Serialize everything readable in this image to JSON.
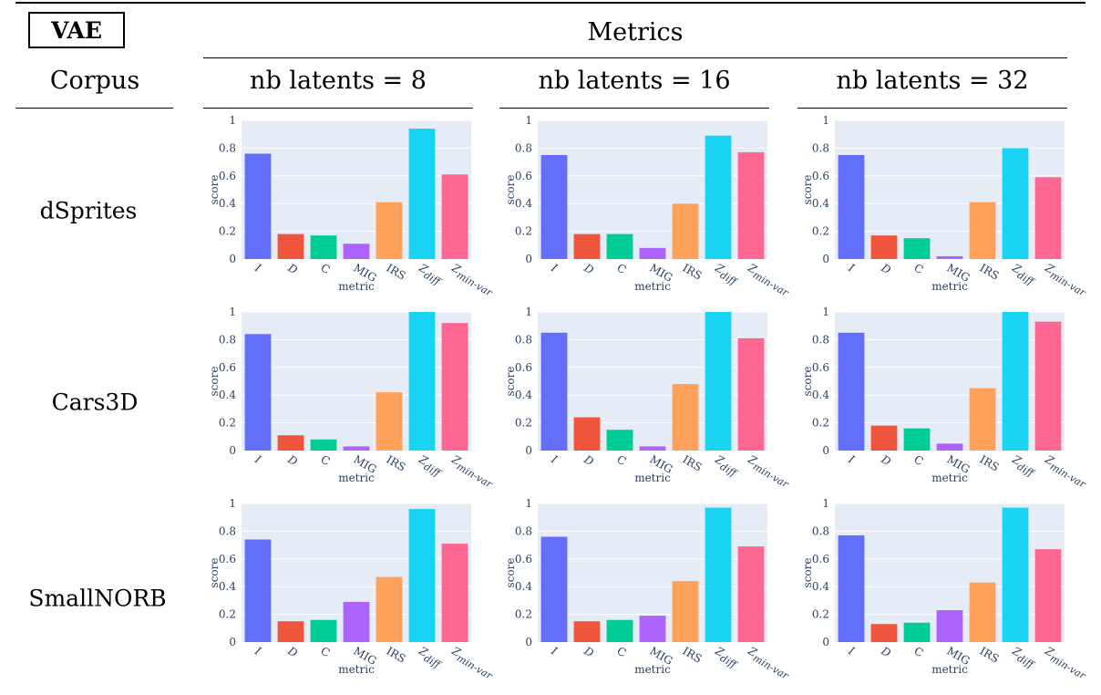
{
  "header": {
    "model_label": "VAE",
    "metrics_label": "Metrics",
    "corpus_label": "Corpus",
    "columns": [
      "nb latents = 8",
      "nb latents = 16",
      "nb latents = 32"
    ]
  },
  "rows": [
    "dSprites",
    "Cars3D",
    "SmallNORB"
  ],
  "chart_data": [
    {
      "type": "bar",
      "row": "dSprites",
      "column": "nb latents = 8",
      "categories": [
        "I",
        "D",
        "C",
        "MIG",
        "IRS",
        "Zdiff",
        "Zmin-var"
      ],
      "values": [
        0.76,
        0.18,
        0.17,
        0.11,
        0.41,
        0.94,
        0.61
      ],
      "xlabel": "metric",
      "ylabel": "score",
      "ylim": [
        0,
        1
      ],
      "yticks": [
        "0",
        "0.2",
        "0.4",
        "0.6",
        "0.8",
        "1"
      ],
      "colors": [
        "#636efa",
        "#ef553b",
        "#00cc96",
        "#ab63fa",
        "#ffa15a",
        "#19d3f3",
        "#ff6692"
      ]
    },
    {
      "type": "bar",
      "row": "dSprites",
      "column": "nb latents = 16",
      "categories": [
        "I",
        "D",
        "C",
        "MIG",
        "IRS",
        "Zdiff",
        "Zmin-var"
      ],
      "values": [
        0.75,
        0.18,
        0.18,
        0.08,
        0.4,
        0.89,
        0.77
      ],
      "xlabel": "metric",
      "ylabel": "score",
      "ylim": [
        0,
        1
      ],
      "yticks": [
        "0",
        "0.2",
        "0.4",
        "0.6",
        "0.8",
        "1"
      ],
      "colors": [
        "#636efa",
        "#ef553b",
        "#00cc96",
        "#ab63fa",
        "#ffa15a",
        "#19d3f3",
        "#ff6692"
      ]
    },
    {
      "type": "bar",
      "row": "dSprites",
      "column": "nb latents = 32",
      "categories": [
        "I",
        "D",
        "C",
        "MIG",
        "IRS",
        "Zdiff",
        "Zmin-var"
      ],
      "values": [
        0.75,
        0.17,
        0.15,
        0.02,
        0.41,
        0.8,
        0.59
      ],
      "xlabel": "metric",
      "ylabel": "score",
      "ylim": [
        0,
        1
      ],
      "yticks": [
        "0",
        "0.2",
        "0.4",
        "0.6",
        "0.8",
        "1"
      ],
      "colors": [
        "#636efa",
        "#ef553b",
        "#00cc96",
        "#ab63fa",
        "#ffa15a",
        "#19d3f3",
        "#ff6692"
      ]
    },
    {
      "type": "bar",
      "row": "Cars3D",
      "column": "nb latents = 8",
      "categories": [
        "I",
        "D",
        "C",
        "MIG",
        "IRS",
        "Zdiff",
        "Zmin-var"
      ],
      "values": [
        0.84,
        0.11,
        0.08,
        0.03,
        0.42,
        1.0,
        0.92
      ],
      "xlabel": "metric",
      "ylabel": "score",
      "ylim": [
        0,
        1
      ],
      "yticks": [
        "0",
        "0.2",
        "0.4",
        "0.6",
        "0.8",
        "1"
      ],
      "colors": [
        "#636efa",
        "#ef553b",
        "#00cc96",
        "#ab63fa",
        "#ffa15a",
        "#19d3f3",
        "#ff6692"
      ]
    },
    {
      "type": "bar",
      "row": "Cars3D",
      "column": "nb latents = 16",
      "categories": [
        "I",
        "D",
        "C",
        "MIG",
        "IRS",
        "Zdiff",
        "Zmin-var"
      ],
      "values": [
        0.85,
        0.24,
        0.15,
        0.03,
        0.48,
        1.0,
        0.81
      ],
      "xlabel": "metric",
      "ylabel": "score",
      "ylim": [
        0,
        1
      ],
      "yticks": [
        "0",
        "0.2",
        "0.4",
        "0.6",
        "0.8",
        "1"
      ],
      "colors": [
        "#636efa",
        "#ef553b",
        "#00cc96",
        "#ab63fa",
        "#ffa15a",
        "#19d3f3",
        "#ff6692"
      ]
    },
    {
      "type": "bar",
      "row": "Cars3D",
      "column": "nb latents = 32",
      "categories": [
        "I",
        "D",
        "C",
        "MIG",
        "IRS",
        "Zdiff",
        "Zmin-var"
      ],
      "values": [
        0.85,
        0.18,
        0.16,
        0.05,
        0.45,
        1.0,
        0.93
      ],
      "xlabel": "metric",
      "ylabel": "score",
      "ylim": [
        0,
        1
      ],
      "yticks": [
        "0",
        "0.2",
        "0.4",
        "0.6",
        "0.8",
        "1"
      ],
      "colors": [
        "#636efa",
        "#ef553b",
        "#00cc96",
        "#ab63fa",
        "#ffa15a",
        "#19d3f3",
        "#ff6692"
      ]
    },
    {
      "type": "bar",
      "row": "SmallNORB",
      "column": "nb latents = 8",
      "categories": [
        "I",
        "D",
        "C",
        "MIG",
        "IRS",
        "Zdiff",
        "Zmin-var"
      ],
      "values": [
        0.74,
        0.15,
        0.16,
        0.29,
        0.47,
        0.96,
        0.71
      ],
      "xlabel": "metric",
      "ylabel": "score",
      "ylim": [
        0,
        1
      ],
      "yticks": [
        "0",
        "0.2",
        "0.4",
        "0.6",
        "0.8",
        "1"
      ],
      "colors": [
        "#636efa",
        "#ef553b",
        "#00cc96",
        "#ab63fa",
        "#ffa15a",
        "#19d3f3",
        "#ff6692"
      ]
    },
    {
      "type": "bar",
      "row": "SmallNORB",
      "column": "nb latents = 16",
      "categories": [
        "I",
        "D",
        "C",
        "MIG",
        "IRS",
        "Zdiff",
        "Zmin-var"
      ],
      "values": [
        0.76,
        0.15,
        0.16,
        0.19,
        0.44,
        0.97,
        0.69
      ],
      "xlabel": "metric",
      "ylabel": "score",
      "ylim": [
        0,
        1
      ],
      "yticks": [
        "0",
        "0.2",
        "0.4",
        "0.6",
        "0.8",
        "1"
      ],
      "colors": [
        "#636efa",
        "#ef553b",
        "#00cc96",
        "#ab63fa",
        "#ffa15a",
        "#19d3f3",
        "#ff6692"
      ]
    },
    {
      "type": "bar",
      "row": "SmallNORB",
      "column": "nb latents = 32",
      "categories": [
        "I",
        "D",
        "C",
        "MIG",
        "IRS",
        "Zdiff",
        "Zmin-var"
      ],
      "values": [
        0.77,
        0.13,
        0.14,
        0.23,
        0.43,
        0.97,
        0.67
      ],
      "xlabel": "metric",
      "ylabel": "score",
      "ylim": [
        0,
        1
      ],
      "yticks": [
        "0",
        "0.2",
        "0.4",
        "0.6",
        "0.8",
        "1"
      ],
      "colors": [
        "#636efa",
        "#ef553b",
        "#00cc96",
        "#ab63fa",
        "#ffa15a",
        "#19d3f3",
        "#ff6692"
      ]
    }
  ]
}
